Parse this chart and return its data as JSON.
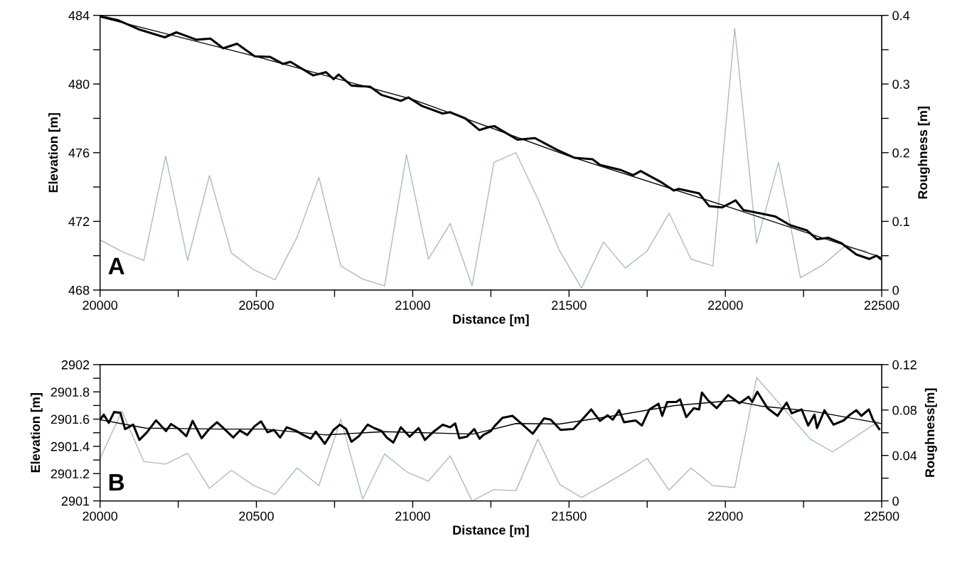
{
  "chart_data": [
    {
      "type": "line",
      "xlabel": "Distance [m]",
      "ylabel": "Elevation [m]",
      "y2label": "Roughness [m]",
      "annotations": [
        "A"
      ],
      "xlim": [
        20000,
        22500
      ],
      "xticks": [
        20000,
        {
          "value": 20250,
          "label": null
        },
        20500,
        {
          "value": 20750,
          "label": null
        },
        21000,
        {
          "value": 21250,
          "label": null
        },
        21500,
        {
          "value": 21750,
          "label": null
        },
        22000,
        {
          "value": 22250,
          "label": null
        },
        22500
      ],
      "ylim": [
        468,
        484
      ],
      "yticks": [
        468,
        {
          "value": 470,
          "label": null
        },
        472,
        {
          "value": 474,
          "label": null
        },
        476,
        {
          "value": 478,
          "label": null
        },
        480,
        {
          "value": 482,
          "label": null
        },
        484
      ],
      "y2lim": [
        0,
        0.4
      ],
      "y2ticks": [
        0,
        {
          "value": 0.05,
          "label": null
        },
        0.1,
        {
          "value": 0.15,
          "label": null
        },
        0.2,
        {
          "value": 0.25,
          "label": null
        },
        0.3,
        {
          "value": 0.35,
          "label": null
        },
        0.4
      ],
      "grid": false,
      "legend": false,
      "marker": "none",
      "line_style": "solid",
      "series": [
        {
          "color": "#000000",
          "x": [
            20000,
            20060,
            20122,
            20207,
            20244,
            20308,
            20353,
            20394,
            20438,
            20495,
            20544,
            20585,
            20609,
            20682,
            20723,
            20747,
            20763,
            20804,
            20864,
            20901,
            20962,
            20986,
            21030,
            21096,
            21120,
            21169,
            21213,
            21246,
            21262,
            21335,
            21391,
            21461,
            21518,
            21575,
            21599,
            21664,
            21705,
            21729,
            21794,
            21835,
            21851,
            21916,
            21948,
            21989,
            22033,
            22058,
            22110,
            22159,
            22207,
            22260,
            22293,
            22330,
            22370,
            22419,
            22460,
            22484,
            22496
          ],
          "values": [
            483.95,
            483.7,
            483.2,
            482.72,
            483.01,
            482.58,
            482.65,
            482.08,
            482.35,
            481.61,
            481.58,
            481.17,
            481.29,
            480.5,
            480.69,
            480.28,
            480.55,
            479.91,
            479.84,
            479.36,
            479.02,
            479.22,
            478.72,
            478.28,
            478.36,
            477.99,
            477.32,
            477.5,
            477.54,
            476.76,
            476.85,
            476.17,
            475.7,
            475.62,
            475.29,
            475.0,
            474.69,
            474.93,
            474.29,
            473.8,
            473.89,
            473.63,
            472.89,
            472.81,
            473.22,
            472.66,
            472.47,
            472.29,
            471.78,
            471.48,
            470.96,
            471.04,
            470.74,
            470.07,
            469.81,
            470.0,
            469.81
          ]
        },
        {
          "color": "#000000",
          "x": [
            20000,
            20500,
            21000,
            21500,
            22000,
            22500
          ],
          "values": [
            483.9,
            481.6,
            479.1,
            475.8,
            472.9,
            469.9
          ]
        },
        {
          "color": "#a9bcc0",
          "axis": "y2",
          "x": [
            20000,
            20070,
            20140,
            20210,
            20280,
            20350,
            20420,
            20490,
            20560,
            20630,
            20700,
            20770,
            20840,
            20910,
            20980,
            21050,
            21120,
            21190,
            21260,
            21330,
            21400,
            21470,
            21540,
            21610,
            21680,
            21750,
            21820,
            21890,
            21960,
            22030,
            22100,
            22170,
            22240,
            22310,
            22380,
            22450
          ],
          "values": [
            0.073,
            0.056,
            0.043,
            0.195,
            0.043,
            0.167,
            0.054,
            0.03,
            0.015,
            0.077,
            0.164,
            0.035,
            0.016,
            0.006,
            0.197,
            0.045,
            0.097,
            0.006,
            0.186,
            0.2,
            0.133,
            0.057,
            0.003,
            0.07,
            0.032,
            0.057,
            0.112,
            0.045,
            0.035,
            0.381,
            0.068,
            0.186,
            0.018,
            0.036,
            0.063,
            0.057
          ]
        }
      ]
    },
    {
      "type": "line",
      "xlabel": "Distance [m]",
      "ylabel": "Elevation [m]",
      "y2label": "Roughness[m]",
      "annotations": [
        "B"
      ],
      "xlim": [
        20000,
        22500
      ],
      "xticks": [
        20000,
        {
          "value": 20250,
          "label": null
        },
        20500,
        {
          "value": 20750,
          "label": null
        },
        21000,
        {
          "value": 21250,
          "label": null
        },
        21500,
        {
          "value": 21750,
          "label": null
        },
        22000,
        {
          "value": 22250,
          "label": null
        },
        22500
      ],
      "ylim": [
        2901,
        2902
      ],
      "yticks": [
        2901,
        {
          "value": 2901.1,
          "label": null
        },
        2901.2,
        {
          "value": 2901.3,
          "label": null
        },
        2901.4,
        {
          "value": 2901.5,
          "label": null
        },
        2901.6,
        {
          "value": 2901.7,
          "label": null
        },
        2901.8,
        {
          "value": 2901.9,
          "label": null
        },
        2902
      ],
      "y2lim": [
        0,
        0.12
      ],
      "y2ticks": [
        0,
        {
          "value": 0.02,
          "label": null
        },
        0.04,
        {
          "value": 0.06,
          "label": null
        },
        0.08,
        {
          "value": 0.1,
          "label": null
        },
        0.12
      ],
      "grid": false,
      "legend": false,
      "marker": "none",
      "line_style": "solid",
      "series": [
        {
          "color": "#000000",
          "x": [
            20000,
            20012,
            20028,
            20045,
            20065,
            20080,
            20106,
            20126,
            20150,
            20179,
            20211,
            20227,
            20252,
            20276,
            20296,
            20325,
            20349,
            20374,
            20398,
            20426,
            20447,
            20471,
            20495,
            20515,
            20536,
            20556,
            20576,
            20597,
            20625,
            20650,
            20674,
            20690,
            20719,
            20747,
            20767,
            20787,
            20804,
            20828,
            20856,
            20877,
            20901,
            20917,
            20938,
            20962,
            20990,
            21019,
            21039,
            21067,
            21096,
            21120,
            21136,
            21149,
            21173,
            21197,
            21214,
            21226,
            21250,
            21262,
            21287,
            21319,
            21347,
            21384,
            21420,
            21441,
            21473,
            21514,
            21542,
            21571,
            21599,
            21623,
            21640,
            21660,
            21676,
            21713,
            21733,
            21757,
            21786,
            21798,
            21814,
            21843,
            21855,
            21875,
            21899,
            21916,
            21925,
            21944,
            21972,
            22009,
            22045,
            22074,
            22086,
            22102,
            22135,
            22167,
            22196,
            22212,
            22244,
            22265,
            22285,
            22293,
            22317,
            22346,
            22378,
            22399,
            22419,
            22435,
            22459,
            22472,
            22492
          ],
          "values": [
            2901.596,
            2901.633,
            2901.572,
            2901.652,
            2901.646,
            2901.527,
            2901.559,
            2901.447,
            2901.503,
            2901.591,
            2901.512,
            2901.564,
            2901.527,
            2901.475,
            2901.587,
            2901.46,
            2901.527,
            2901.577,
            2901.527,
            2901.465,
            2901.516,
            2901.484,
            2901.549,
            2901.583,
            2901.503,
            2901.521,
            2901.465,
            2901.54,
            2901.516,
            2901.484,
            2901.456,
            2901.508,
            2901.419,
            2901.521,
            2901.559,
            2901.527,
            2901.434,
            2901.475,
            2901.559,
            2901.534,
            2901.512,
            2901.465,
            2901.428,
            2901.54,
            2901.471,
            2901.534,
            2901.447,
            2901.508,
            2901.559,
            2901.54,
            2901.568,
            2901.46,
            2901.471,
            2901.527,
            2901.456,
            2901.484,
            2901.512,
            2901.549,
            2901.609,
            2901.624,
            2901.568,
            2901.493,
            2901.605,
            2901.596,
            2901.521,
            2901.527,
            2901.596,
            2901.671,
            2901.587,
            2901.628,
            2901.596,
            2901.665,
            2901.577,
            2901.59,
            2901.553,
            2901.671,
            2901.713,
            2901.624,
            2901.726,
            2901.726,
            2901.745,
            2901.615,
            2901.68,
            2901.671,
            2901.795,
            2901.739,
            2901.68,
            2901.777,
            2901.717,
            2901.764,
            2901.726,
            2901.801,
            2901.68,
            2901.624,
            2901.721,
            2901.643,
            2901.671,
            2901.553,
            2901.633,
            2901.534,
            2901.665,
            2901.559,
            2901.59,
            2901.633,
            2901.665,
            2901.624,
            2901.671,
            2901.596,
            2901.527
          ]
        },
        {
          "color": "#000000",
          "x": [
            20000,
            20146,
            20382,
            20528,
            20723,
            20909,
            21193,
            21331,
            21469,
            21632,
            21834,
            22021,
            22118,
            22281,
            22498
          ],
          "values": [
            2901.596,
            2901.534,
            2901.527,
            2901.527,
            2901.484,
            2901.508,
            2901.49,
            2901.568,
            2901.564,
            2901.62,
            2901.698,
            2901.736,
            2901.694,
            2901.657,
            2901.568
          ]
        },
        {
          "color": "#a9bcc0",
          "axis": "y2",
          "x": [
            20000,
            20070,
            20140,
            20210,
            20280,
            20350,
            20420,
            20490,
            20560,
            20630,
            20700,
            20770,
            20840,
            20910,
            20980,
            21050,
            21120,
            21190,
            21260,
            21330,
            21400,
            21470,
            21540,
            21610,
            21680,
            21750,
            21820,
            21890,
            21960,
            22030,
            22100,
            22273,
            22343,
            22490
          ],
          "values": [
            0.0373,
            0.079,
            0.0346,
            0.0324,
            0.042,
            0.011,
            0.027,
            0.0138,
            0.0056,
            0.029,
            0.0134,
            0.072,
            0.0016,
            0.0413,
            0.0257,
            0.0174,
            0.0396,
            0.0,
            0.01,
            0.0089,
            0.0543,
            0.0145,
            0.0029,
            0.0137,
            0.025,
            0.0373,
            0.0094,
            0.029,
            0.0134,
            0.0118,
            0.1085,
            0.0541,
            0.0431,
            0.07
          ]
        }
      ]
    }
  ]
}
